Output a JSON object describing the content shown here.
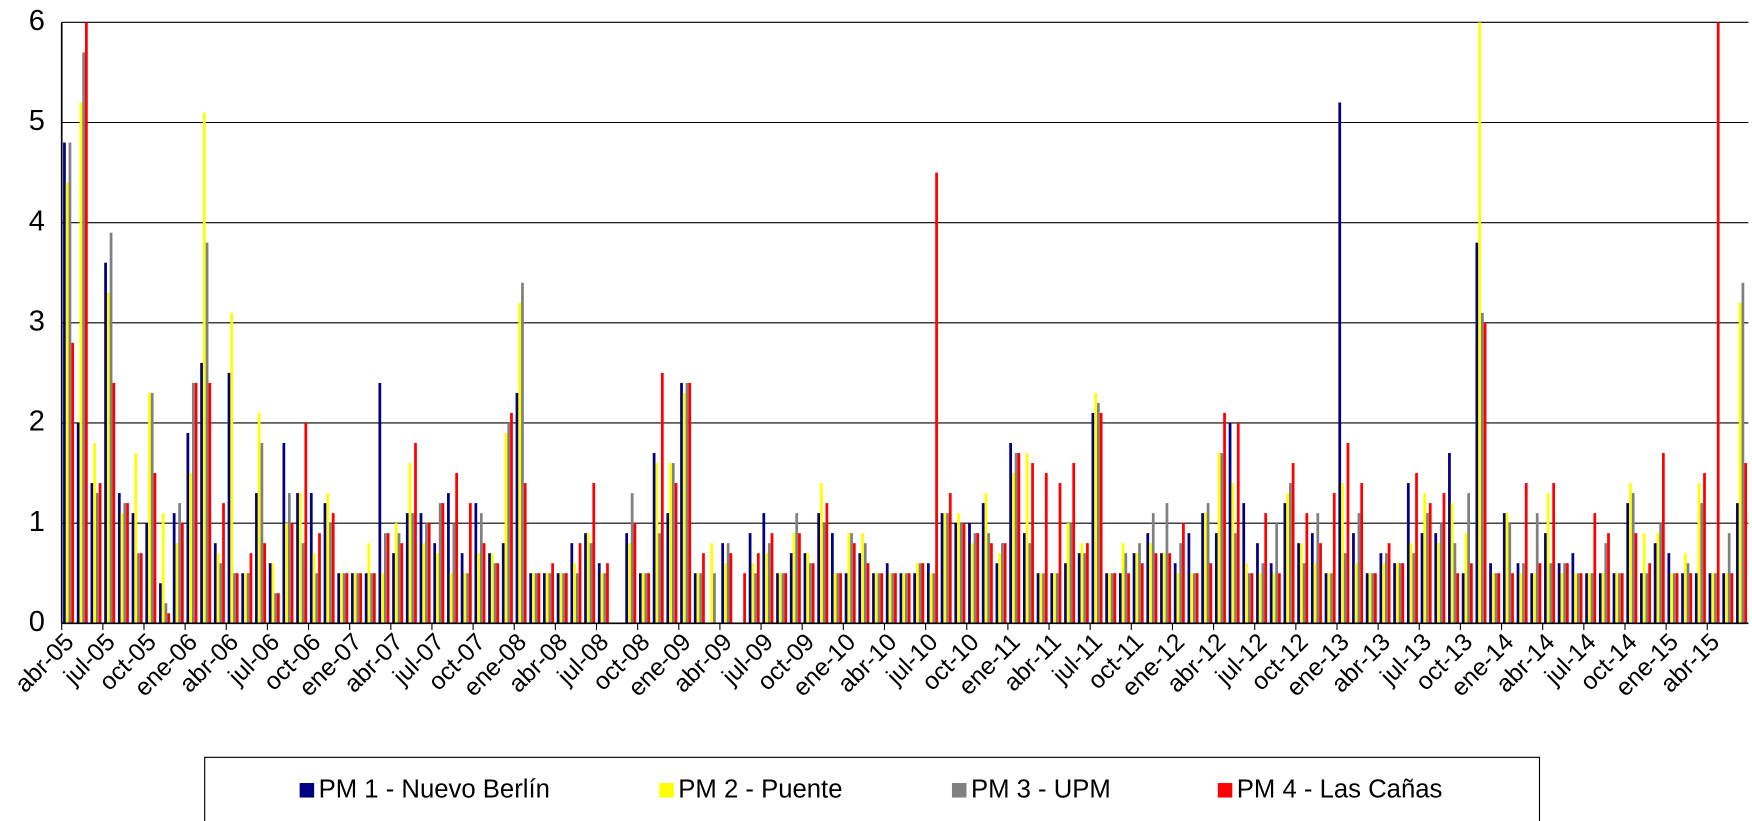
{
  "chart_data": {
    "type": "bar",
    "categories": [
      "abr-05",
      null,
      null,
      "jul-05",
      null,
      null,
      "oct-05",
      null,
      null,
      "ene-06",
      null,
      null,
      "abr-06",
      null,
      null,
      "jul-06",
      null,
      null,
      "oct-06",
      null,
      null,
      "ene-07",
      null,
      null,
      "abr-07",
      null,
      null,
      "jul-07",
      null,
      null,
      "oct-07",
      null,
      null,
      "ene-08",
      null,
      null,
      "abr-08",
      null,
      null,
      "jul-08",
      null,
      null,
      "oct-08",
      null,
      null,
      "ene-09",
      null,
      null,
      "abr-09",
      null,
      null,
      "jul-09",
      null,
      null,
      "oct-09",
      null,
      null,
      "ene-10",
      null,
      null,
      "abr-10",
      null,
      null,
      "jul-10",
      null,
      null,
      "oct-10",
      null,
      null,
      "ene-11",
      null,
      null,
      "abr-11",
      null,
      null,
      "jul-11",
      null,
      null,
      "oct-11",
      null,
      null,
      "ene-12",
      null,
      null,
      "abr-12",
      null,
      null,
      "jul-12",
      null,
      null,
      "oct-12",
      null,
      null,
      "ene-13",
      null,
      null,
      "abr-13",
      null,
      null,
      "jul-13",
      null,
      null,
      "oct-13",
      null,
      null,
      "ene-14",
      null,
      null,
      "abr-14",
      null,
      null,
      "jul-14",
      null,
      null,
      "oct-14",
      null,
      null,
      "ene-15",
      null,
      null,
      "abr-15",
      null,
      null
    ],
    "series": [
      {
        "name": "PM 1 - Nuevo Berlín",
        "color": "#000080",
        "values": [
          4.8,
          2.0,
          1.4,
          3.6,
          1.3,
          1.1,
          1.0,
          0.4,
          1.1,
          1.9,
          2.6,
          0.8,
          2.5,
          0.5,
          1.3,
          0.6,
          1.8,
          1.3,
          1.3,
          1.2,
          0.5,
          0.5,
          0.5,
          2.4,
          0.7,
          1.1,
          1.1,
          0.8,
          1.3,
          0.7,
          1.2,
          0.7,
          0.8,
          2.3,
          0.5,
          0.5,
          0.5,
          0.8,
          0.9,
          0.6,
          null,
          0.9,
          0.5,
          1.7,
          1.1,
          2.4,
          0.5,
          null,
          0.8,
          null,
          0.9,
          1.1,
          0.5,
          0.7,
          0.7,
          1.1,
          0.9,
          0.5,
          0.7,
          0.5,
          0.6,
          0.5,
          0.5,
          0.6,
          1.1,
          1.0,
          1.0,
          1.2,
          0.6,
          1.8,
          0.9,
          0.5,
          0.5,
          0.6,
          0.7,
          2.1,
          0.5,
          0.5,
          0.7,
          0.9,
          0.7,
          0.6,
          0.9,
          1.1,
          0.9,
          2.0,
          1.2,
          0.8,
          0.6,
          1.2,
          0.8,
          0.9,
          0.5,
          5.2,
          0.9,
          0.5,
          0.7,
          0.6,
          1.4,
          0.9,
          0.9,
          1.7,
          0.5,
          3.8,
          0.6,
          1.1,
          0.6,
          0.5,
          0.9,
          0.6,
          0.7,
          0.5,
          0.5,
          0.5,
          1.2,
          0.5,
          0.8,
          0.7,
          0.5,
          0.5,
          0.5,
          0.5,
          1.2
        ]
      },
      {
        "name": "PM 2 - Puente",
        "color": "#ffff00",
        "values": [
          4.4,
          5.2,
          1.8,
          3.3,
          1.1,
          1.7,
          2.3,
          1.1,
          0.8,
          1.5,
          5.1,
          0.7,
          3.1,
          0.5,
          2.1,
          0.6,
          1.0,
          1.3,
          0.7,
          1.3,
          0.5,
          0.5,
          0.8,
          0.5,
          1.0,
          1.6,
          0.8,
          0.7,
          0.5,
          0.5,
          0.7,
          0.7,
          1.9,
          3.2,
          0.5,
          0.5,
          0.5,
          0.6,
          0.9,
          0.5,
          null,
          0.8,
          0.5,
          1.6,
          1.6,
          2.3,
          0.5,
          0.8,
          0.6,
          null,
          0.6,
          0.7,
          0.5,
          0.9,
          0.7,
          1.4,
          0.5,
          0.9,
          0.9,
          0.5,
          0.5,
          0.5,
          0.6,
          0.5,
          1.1,
          1.1,
          0.8,
          1.3,
          0.7,
          1.5,
          1.7,
          0.5,
          0.5,
          1.0,
          0.8,
          2.3,
          0.5,
          0.8,
          0.7,
          0.8,
          0.7,
          0.5,
          0.5,
          1.1,
          1.7,
          1.4,
          0.6,
          0.5,
          0.5,
          1.3,
          0.8,
          0.6,
          0.5,
          1.4,
          0.6,
          0.5,
          0.6,
          0.6,
          0.8,
          1.3,
          0.8,
          1.2,
          0.9,
          6.0,
          0.5,
          1.1,
          0.5,
          0.5,
          1.3,
          0.5,
          0.5,
          0.5,
          0.5,
          0.5,
          1.4,
          0.9,
          0.9,
          0.5,
          0.7,
          1.4,
          0.5,
          0.5,
          3.2
        ]
      },
      {
        "name": "PM 3 - UPM",
        "color": "#808080",
        "values": [
          4.8,
          5.7,
          1.3,
          3.9,
          1.2,
          0.7,
          2.3,
          0.2,
          1.2,
          2.4,
          3.8,
          0.6,
          0.5,
          0.5,
          1.8,
          0.3,
          1.3,
          0.8,
          0.5,
          1.0,
          0.5,
          0.5,
          0.5,
          0.9,
          0.9,
          1.1,
          1.0,
          1.2,
          1.0,
          0.5,
          1.1,
          0.6,
          2.0,
          3.4,
          0.5,
          0.5,
          0.5,
          0.5,
          0.8,
          0.5,
          null,
          1.3,
          0.5,
          0.9,
          1.6,
          2.4,
          0.5,
          0.5,
          0.8,
          null,
          0.5,
          0.8,
          0.5,
          1.1,
          0.6,
          1.0,
          0.5,
          0.9,
          0.8,
          0.5,
          0.5,
          0.5,
          0.6,
          0.5,
          1.1,
          1.0,
          0.9,
          0.9,
          0.8,
          1.7,
          0.8,
          0.5,
          0.5,
          1.0,
          0.7,
          2.2,
          0.5,
          0.7,
          0.8,
          1.1,
          1.2,
          0.8,
          0.5,
          1.2,
          1.7,
          0.9,
          0.5,
          0.6,
          1.0,
          1.4,
          0.6,
          1.1,
          0.5,
          0.7,
          1.1,
          0.5,
          0.7,
          0.6,
          0.7,
          1.1,
          1.0,
          0.8,
          1.3,
          3.1,
          0.5,
          1.0,
          0.6,
          1.1,
          0.6,
          0.6,
          0.5,
          0.5,
          0.8,
          0.5,
          1.3,
          0.5,
          1.0,
          0.5,
          0.6,
          1.2,
          0.5,
          0.9,
          3.4
        ]
      },
      {
        "name": "PM 4 - Las Cañas",
        "color": "#ff0000",
        "values": [
          2.8,
          6.0,
          1.4,
          2.4,
          1.2,
          0.7,
          1.5,
          0.1,
          1.0,
          2.4,
          2.4,
          1.2,
          0.5,
          0.7,
          0.8,
          0.3,
          1.0,
          2.0,
          0.9,
          1.1,
          0.5,
          0.5,
          0.5,
          0.9,
          0.8,
          1.8,
          1.0,
          1.2,
          1.5,
          1.2,
          0.8,
          0.6,
          2.1,
          1.4,
          0.5,
          0.6,
          0.5,
          0.8,
          1.4,
          0.6,
          null,
          1.0,
          0.5,
          2.5,
          1.4,
          2.4,
          0.7,
          null,
          0.7,
          0.5,
          0.7,
          0.9,
          0.5,
          0.9,
          0.6,
          1.2,
          0.5,
          0.8,
          0.6,
          0.5,
          0.5,
          0.5,
          0.6,
          4.5,
          1.3,
          1.0,
          0.9,
          0.8,
          0.8,
          1.7,
          1.6,
          1.5,
          1.4,
          1.6,
          0.8,
          2.1,
          0.5,
          0.5,
          0.6,
          0.7,
          0.7,
          1.0,
          0.5,
          0.6,
          2.1,
          2.0,
          0.5,
          1.1,
          0.5,
          1.6,
          1.1,
          0.8,
          1.3,
          1.8,
          1.4,
          0.5,
          0.8,
          0.6,
          1.5,
          1.2,
          1.3,
          0.5,
          0.6,
          3.0,
          0.5,
          0.5,
          1.4,
          0.6,
          1.4,
          0.6,
          0.5,
          1.1,
          0.9,
          0.5,
          0.9,
          0.6,
          1.7,
          0.5,
          0.5,
          1.5,
          6.0,
          0.5,
          1.6
        ]
      }
    ],
    "ylim": [
      0,
      6
    ],
    "yticks": [
      0,
      1,
      2,
      3,
      4,
      5,
      6
    ],
    "grid": true,
    "legend": "bottom"
  }
}
